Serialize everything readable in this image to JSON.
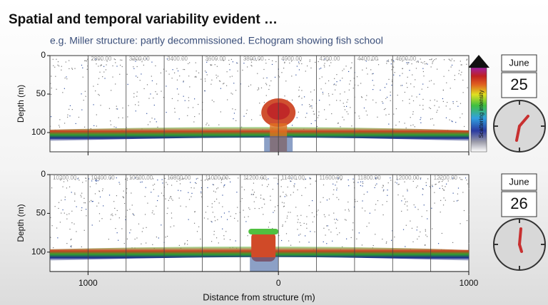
{
  "title": "Spatial and temporal variability evident …",
  "subtitle": "e.g. Miller structure: partly decommissioned. Echogram showing fish school",
  "colorbar_label": "Scattering intensity",
  "x_axis": {
    "label": "Distance from structure (m)",
    "xlim": [
      -1200,
      1000
    ],
    "xticks": [
      {
        "value": -1000,
        "label": "1000"
      },
      0,
      1000
    ]
  },
  "panels": [
    {
      "y_label": "Depth (m)",
      "ylim": [
        0,
        125
      ],
      "yticks": [
        0,
        50,
        100
      ],
      "ping_labels": [
        "2800.00",
        "3200.00",
        "3400.00",
        "3600.00",
        "3800.00",
        "4000.00",
        "4200.00",
        "4400.00",
        "4600.00"
      ],
      "month": "June",
      "day": "25"
    },
    {
      "y_label": "Depth (m)",
      "ylim": [
        0,
        125
      ],
      "yticks": [
        0,
        50,
        100
      ],
      "ping_labels": [
        "10200.00",
        "10400.00",
        "10600.00",
        "10800.00",
        "11000.00",
        "11200.00",
        "11400.00",
        "11600.00",
        "11800.00",
        "12000.00",
        "12200.00"
      ],
      "month": "June",
      "day": "26"
    }
  ]
}
